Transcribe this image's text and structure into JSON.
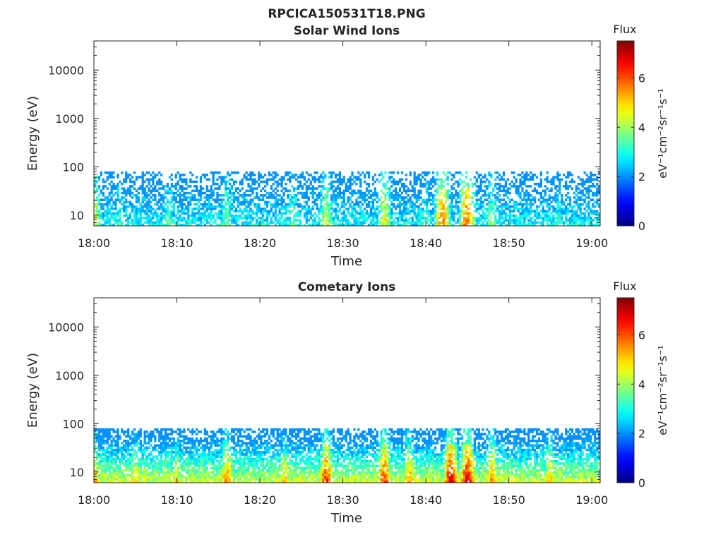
{
  "figure": {
    "filename": "RPCICA150531T18.PNG"
  },
  "chart_data": [
    {
      "type": "heatmap",
      "title": "Solar Wind Ions",
      "xlabel": "Time",
      "ylabel": "Energy (eV)",
      "x_ticks": [
        "18:00",
        "18:10",
        "18:20",
        "18:30",
        "18:40",
        "18:50",
        "19:00"
      ],
      "x_range": [
        "18:00",
        "19:01"
      ],
      "y_scale": "log",
      "y_range": [
        6,
        40000
      ],
      "y_ticks": [
        {
          "value": 10,
          "label": "10"
        },
        {
          "value": 100,
          "label": "100"
        },
        {
          "value": 1000,
          "label": "1000"
        },
        {
          "value": 10000,
          "label": "10000"
        }
      ],
      "colorbar": {
        "title": "Flux",
        "label": "eV⁻¹cm⁻²sr⁻¹s⁻¹",
        "range": [
          0,
          7.5
        ],
        "ticks": [
          "0",
          "2",
          "4",
          "6"
        ],
        "colormap": "jet"
      },
      "data_energy_max_eV": 80,
      "bursts": [
        {
          "t": "18:00",
          "level": 4.5
        },
        {
          "t": "18:03",
          "level": 3.2
        },
        {
          "t": "18:09",
          "level": 3.5
        },
        {
          "t": "18:16",
          "level": 3.8
        },
        {
          "t": "18:24",
          "level": 3.6
        },
        {
          "t": "18:28",
          "level": 4.2
        },
        {
          "t": "18:35",
          "level": 4.6
        },
        {
          "t": "18:40",
          "level": 3.4
        },
        {
          "t": "18:42",
          "level": 5.6
        },
        {
          "t": "18:45",
          "level": 5.8
        },
        {
          "t": "18:48",
          "level": 3.8
        },
        {
          "t": "18:56",
          "level": 3.3
        }
      ]
    },
    {
      "type": "heatmap",
      "title": "Cometary Ions",
      "xlabel": "Time",
      "ylabel": "Energy (eV)",
      "x_ticks": [
        "18:00",
        "18:10",
        "18:20",
        "18:30",
        "18:40",
        "18:50",
        "19:00"
      ],
      "x_range": [
        "18:00",
        "19:01"
      ],
      "y_scale": "log",
      "y_range": [
        6,
        40000
      ],
      "y_ticks": [
        {
          "value": 10,
          "label": "10"
        },
        {
          "value": 100,
          "label": "100"
        },
        {
          "value": 1000,
          "label": "1000"
        },
        {
          "value": 10000,
          "label": "10000"
        }
      ],
      "colorbar": {
        "title": "Flux",
        "label": "eV⁻¹cm⁻²sr⁻¹s⁻¹",
        "range": [
          0,
          7.5
        ],
        "ticks": [
          "0",
          "2",
          "4",
          "6"
        ],
        "colormap": "jet"
      },
      "data_energy_max_eV": 80,
      "bursts": [
        {
          "t": "18:00",
          "level": 5.5
        },
        {
          "t": "18:05",
          "level": 5.0
        },
        {
          "t": "18:10",
          "level": 4.8
        },
        {
          "t": "18:16",
          "level": 5.6
        },
        {
          "t": "18:23",
          "level": 5.0
        },
        {
          "t": "18:28",
          "level": 6.2
        },
        {
          "t": "18:35",
          "level": 6.2
        },
        {
          "t": "18:38",
          "level": 5.4
        },
        {
          "t": "18:43",
          "level": 6.8
        },
        {
          "t": "18:45",
          "level": 6.8
        },
        {
          "t": "18:48",
          "level": 5.6
        },
        {
          "t": "18:55",
          "level": 5.2
        }
      ]
    }
  ]
}
